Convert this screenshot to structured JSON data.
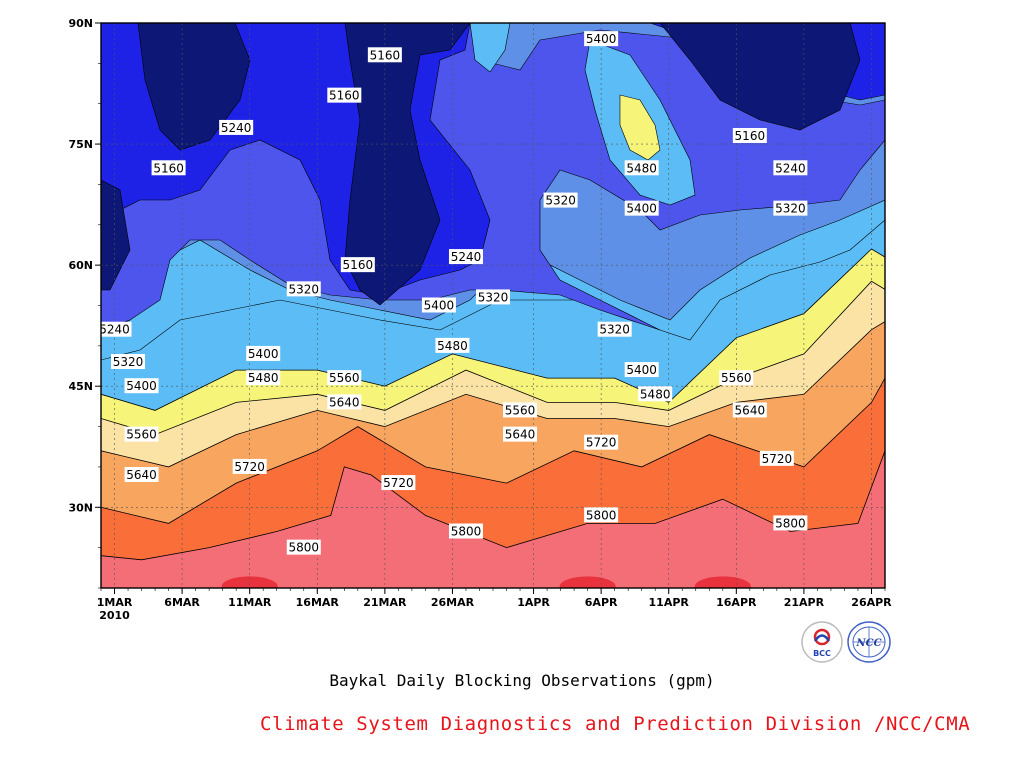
{
  "title": "Baykal Daily Blocking Observations (gpm)",
  "credit": "Climate System Diagnostics and Prediction Division /NCC/CMA",
  "logos": [
    {
      "name": "bcc-logo",
      "text": "BCC"
    },
    {
      "name": "ncc-logo",
      "text": "NCC"
    }
  ],
  "chart_data": {
    "type": "heatmap",
    "subtype": "filled-contour",
    "title": "Baykal Daily Blocking Observations (gpm)",
    "x_axis": {
      "type": "date",
      "range": [
        "2010-02-28",
        "2010-04-27"
      ],
      "tick_labels": [
        "1MAR",
        "6MAR",
        "11MAR",
        "16MAR",
        "21MAR",
        "26MAR",
        "1APR",
        "6APR",
        "11APR",
        "16APR",
        "21APR",
        "26APR"
      ],
      "tick_dates": [
        "2010-03-01",
        "2010-03-06",
        "2010-03-11",
        "2010-03-16",
        "2010-03-21",
        "2010-03-26",
        "2010-04-01",
        "2010-04-06",
        "2010-04-11",
        "2010-04-16",
        "2010-04-21",
        "2010-04-26"
      ],
      "year_label": "2010"
    },
    "y_axis": {
      "label": "",
      "unit": "degrees north",
      "range": [
        20,
        90
      ],
      "tick_labels": [
        "30N",
        "45N",
        "60N",
        "75N",
        "90N"
      ],
      "ticks": [
        30,
        45,
        60,
        75,
        90
      ]
    },
    "grid": true,
    "contour_levels": [
      5160,
      5240,
      5320,
      5400,
      5480,
      5560,
      5640,
      5720,
      5800,
      5880
    ],
    "fill_colors": [
      "#0d1775",
      "#1d22e6",
      "#4d55ed",
      "#5e90e8",
      "#5bbcf6",
      "#f6f57a",
      "#fae3a5",
      "#f8a55f",
      "#fa6e3a",
      "#f46e78",
      "#e8323e"
    ],
    "contours": [
      {
        "level": 5800,
        "points": [
          [
            "2010-02-28",
            24
          ],
          [
            "2010-03-03",
            23.5
          ],
          [
            "2010-03-08",
            25
          ],
          [
            "2010-03-13",
            27
          ],
          [
            "2010-03-17",
            29
          ],
          [
            "2010-03-18",
            35
          ],
          [
            "2010-03-20",
            34
          ],
          [
            "2010-03-24",
            29
          ],
          [
            "2010-03-30",
            25
          ],
          [
            "2010-04-05",
            28
          ],
          [
            "2010-04-10",
            28
          ],
          [
            "2010-04-15",
            31
          ],
          [
            "2010-04-20",
            27
          ],
          [
            "2010-04-25",
            28
          ],
          [
            "2010-04-27",
            37
          ]
        ]
      },
      {
        "level": 5720,
        "points": [
          [
            "2010-02-28",
            30
          ],
          [
            "2010-03-05",
            28
          ],
          [
            "2010-03-10",
            33
          ],
          [
            "2010-03-16",
            37
          ],
          [
            "2010-03-19",
            40
          ],
          [
            "2010-03-24",
            35
          ],
          [
            "2010-03-30",
            33
          ],
          [
            "2010-04-04",
            37
          ],
          [
            "2010-04-09",
            35
          ],
          [
            "2010-04-14",
            39
          ],
          [
            "2010-04-21",
            35
          ],
          [
            "2010-04-26",
            43
          ],
          [
            "2010-04-27",
            46
          ]
        ]
      },
      {
        "level": 5640,
        "points": [
          [
            "2010-02-28",
            37
          ],
          [
            "2010-03-05",
            35
          ],
          [
            "2010-03-10",
            39
          ],
          [
            "2010-03-16",
            42
          ],
          [
            "2010-03-21",
            40
          ],
          [
            "2010-03-27",
            44
          ],
          [
            "2010-04-02",
            41
          ],
          [
            "2010-04-07",
            41
          ],
          [
            "2010-04-11",
            40
          ],
          [
            "2010-04-16",
            43
          ],
          [
            "2010-04-21",
            44
          ],
          [
            "2010-04-26",
            52
          ],
          [
            "2010-04-27",
            53
          ]
        ]
      },
      {
        "level": 5560,
        "points": [
          [
            "2010-02-28",
            41
          ],
          [
            "2010-03-04",
            39
          ],
          [
            "2010-03-10",
            43
          ],
          [
            "2010-03-16",
            44
          ],
          [
            "2010-03-21",
            42
          ],
          [
            "2010-03-27",
            47
          ],
          [
            "2010-04-02",
            43
          ],
          [
            "2010-04-07",
            43
          ],
          [
            "2010-04-11",
            42
          ],
          [
            "2010-04-16",
            46
          ],
          [
            "2010-04-21",
            49
          ],
          [
            "2010-04-26",
            58
          ],
          [
            "2010-04-27",
            57
          ]
        ]
      },
      {
        "level": 5480,
        "points": [
          [
            "2010-02-28",
            44
          ],
          [
            "2010-03-04",
            42
          ],
          [
            "2010-03-10",
            47
          ],
          [
            "2010-03-16",
            47
          ],
          [
            "2010-03-21",
            45
          ],
          [
            "2010-03-26",
            49
          ],
          [
            "2010-04-02",
            46
          ],
          [
            "2010-04-07",
            46
          ],
          [
            "2010-04-11",
            43
          ],
          [
            "2010-04-16",
            51
          ],
          [
            "2010-04-21",
            54
          ],
          [
            "2010-04-26",
            62
          ],
          [
            "2010-04-27",
            61
          ]
        ]
      }
    ],
    "contour_labels": [
      {
        "value": "5160",
        "date": "2010-03-21",
        "lat": 86
      },
      {
        "value": "5400",
        "date": "2010-04-06",
        "lat": 88
      },
      {
        "value": "5160",
        "date": "2010-03-18",
        "lat": 81
      },
      {
        "value": "5240",
        "date": "2010-03-10",
        "lat": 77
      },
      {
        "value": "5160",
        "date": "2010-04-17",
        "lat": 76
      },
      {
        "value": "5160",
        "date": "2010-03-05",
        "lat": 72
      },
      {
        "value": "5480",
        "date": "2010-04-09",
        "lat": 72
      },
      {
        "value": "5240",
        "date": "2010-04-20",
        "lat": 72
      },
      {
        "value": "5320",
        "date": "2010-04-03",
        "lat": 68
      },
      {
        "value": "5400",
        "date": "2010-04-09",
        "lat": 67
      },
      {
        "value": "5320",
        "date": "2010-04-20",
        "lat": 67
      },
      {
        "value": "5240",
        "date": "2010-03-27",
        "lat": 61
      },
      {
        "value": "5160",
        "date": "2010-03-19",
        "lat": 60
      },
      {
        "value": "5320",
        "date": "2010-03-15",
        "lat": 57
      },
      {
        "value": "5400",
        "date": "2010-03-25",
        "lat": 55
      },
      {
        "value": "5320",
        "date": "2010-03-29",
        "lat": 56
      },
      {
        "value": "5240",
        "date": "2010-03-01",
        "lat": 52
      },
      {
        "value": "5320",
        "date": "2010-04-07",
        "lat": 52
      },
      {
        "value": "5480",
        "date": "2010-03-26",
        "lat": 50
      },
      {
        "value": "5320",
        "date": "2010-03-02",
        "lat": 48
      },
      {
        "value": "5400",
        "date": "2010-03-12",
        "lat": 49
      },
      {
        "value": "5400",
        "date": "2010-04-09",
        "lat": 47
      },
      {
        "value": "5480",
        "date": "2010-03-12",
        "lat": 46
      },
      {
        "value": "5560",
        "date": "2010-03-18",
        "lat": 46
      },
      {
        "value": "5560",
        "date": "2010-04-16",
        "lat": 46
      },
      {
        "value": "5400",
        "date": "2010-03-03",
        "lat": 45
      },
      {
        "value": "5480",
        "date": "2010-04-10",
        "lat": 44
      },
      {
        "value": "5640",
        "date": "2010-03-18",
        "lat": 43
      },
      {
        "value": "5560",
        "date": "2010-03-31",
        "lat": 42
      },
      {
        "value": "5640",
        "date": "2010-04-17",
        "lat": 42
      },
      {
        "value": "5560",
        "date": "2010-03-03",
        "lat": 39
      },
      {
        "value": "5640",
        "date": "2010-03-31",
        "lat": 39
      },
      {
        "value": "5720",
        "date": "2010-04-06",
        "lat": 38
      },
      {
        "value": "5720",
        "date": "2010-03-11",
        "lat": 35
      },
      {
        "value": "5720",
        "date": "2010-04-19",
        "lat": 36
      },
      {
        "value": "5640",
        "date": "2010-03-03",
        "lat": 34
      },
      {
        "value": "5720",
        "date": "2010-03-22",
        "lat": 33
      },
      {
        "value": "5800",
        "date": "2010-04-06",
        "lat": 29
      },
      {
        "value": "5800",
        "date": "2010-04-20",
        "lat": 28
      },
      {
        "value": "5800",
        "date": "2010-03-27",
        "lat": 27
      },
      {
        "value": "5800",
        "date": "2010-03-15",
        "lat": 25
      }
    ]
  }
}
